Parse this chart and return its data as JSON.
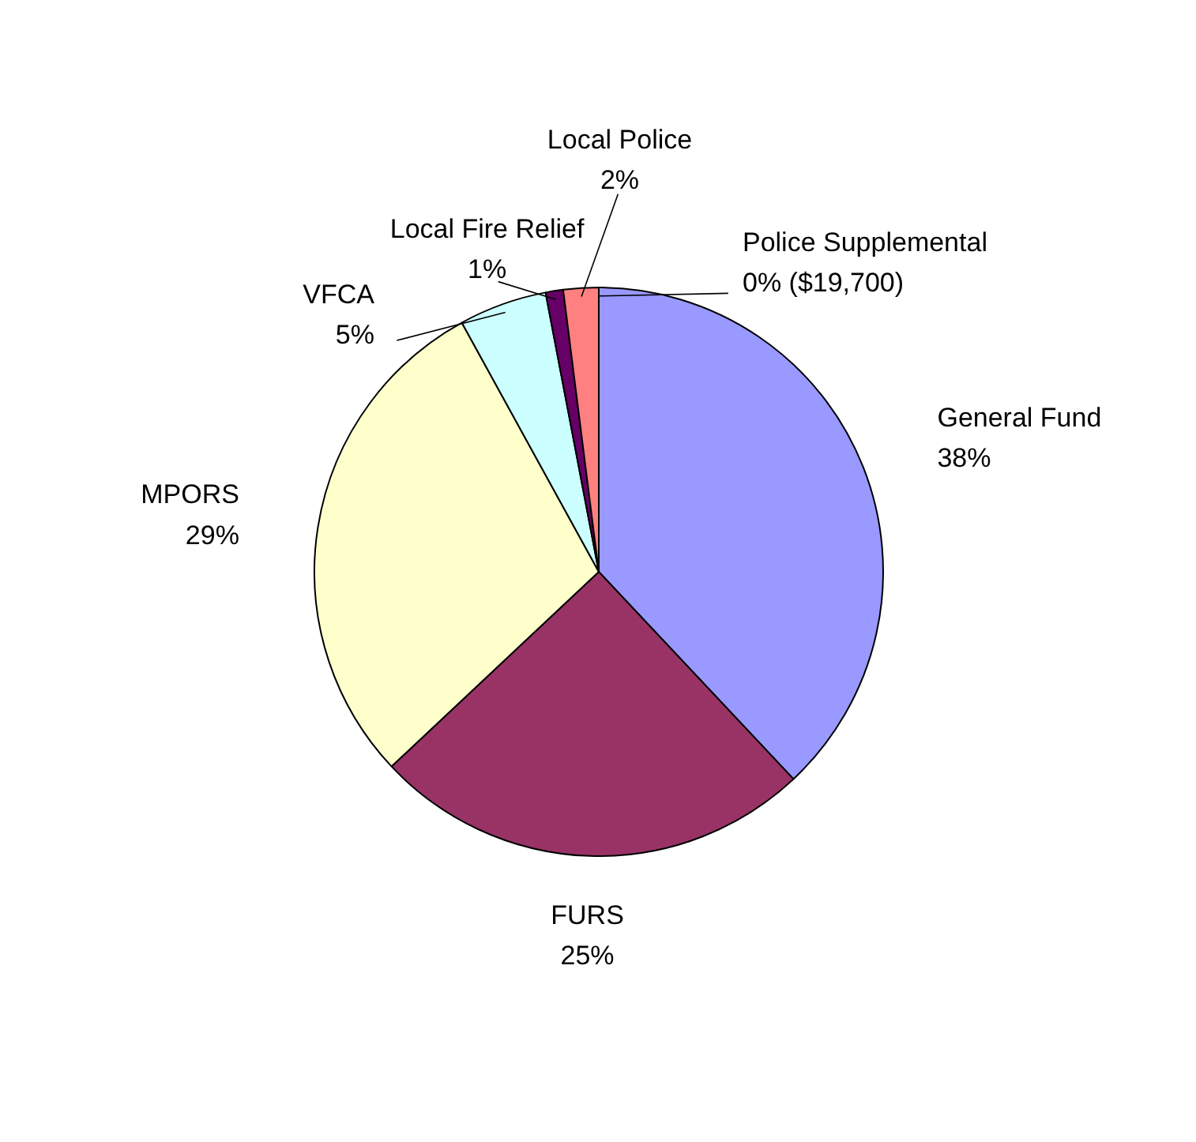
{
  "chart_data": {
    "type": "pie",
    "categories": [
      "General Fund",
      "FURS",
      "MPORS",
      "VFCA",
      "Local Fire Relief",
      "Local Police",
      "Police Supplemental"
    ],
    "values": [
      38,
      25,
      29,
      5,
      1,
      2,
      0
    ],
    "colors": [
      "#9999ff",
      "#993366",
      "#ffffcc",
      "#ccffff",
      "#660066",
      "#ff8080",
      "#0066cc"
    ],
    "value_labels": [
      "38%",
      "25%",
      "29%",
      "5%",
      "1%",
      "2%",
      "0% ($19,700)"
    ]
  }
}
